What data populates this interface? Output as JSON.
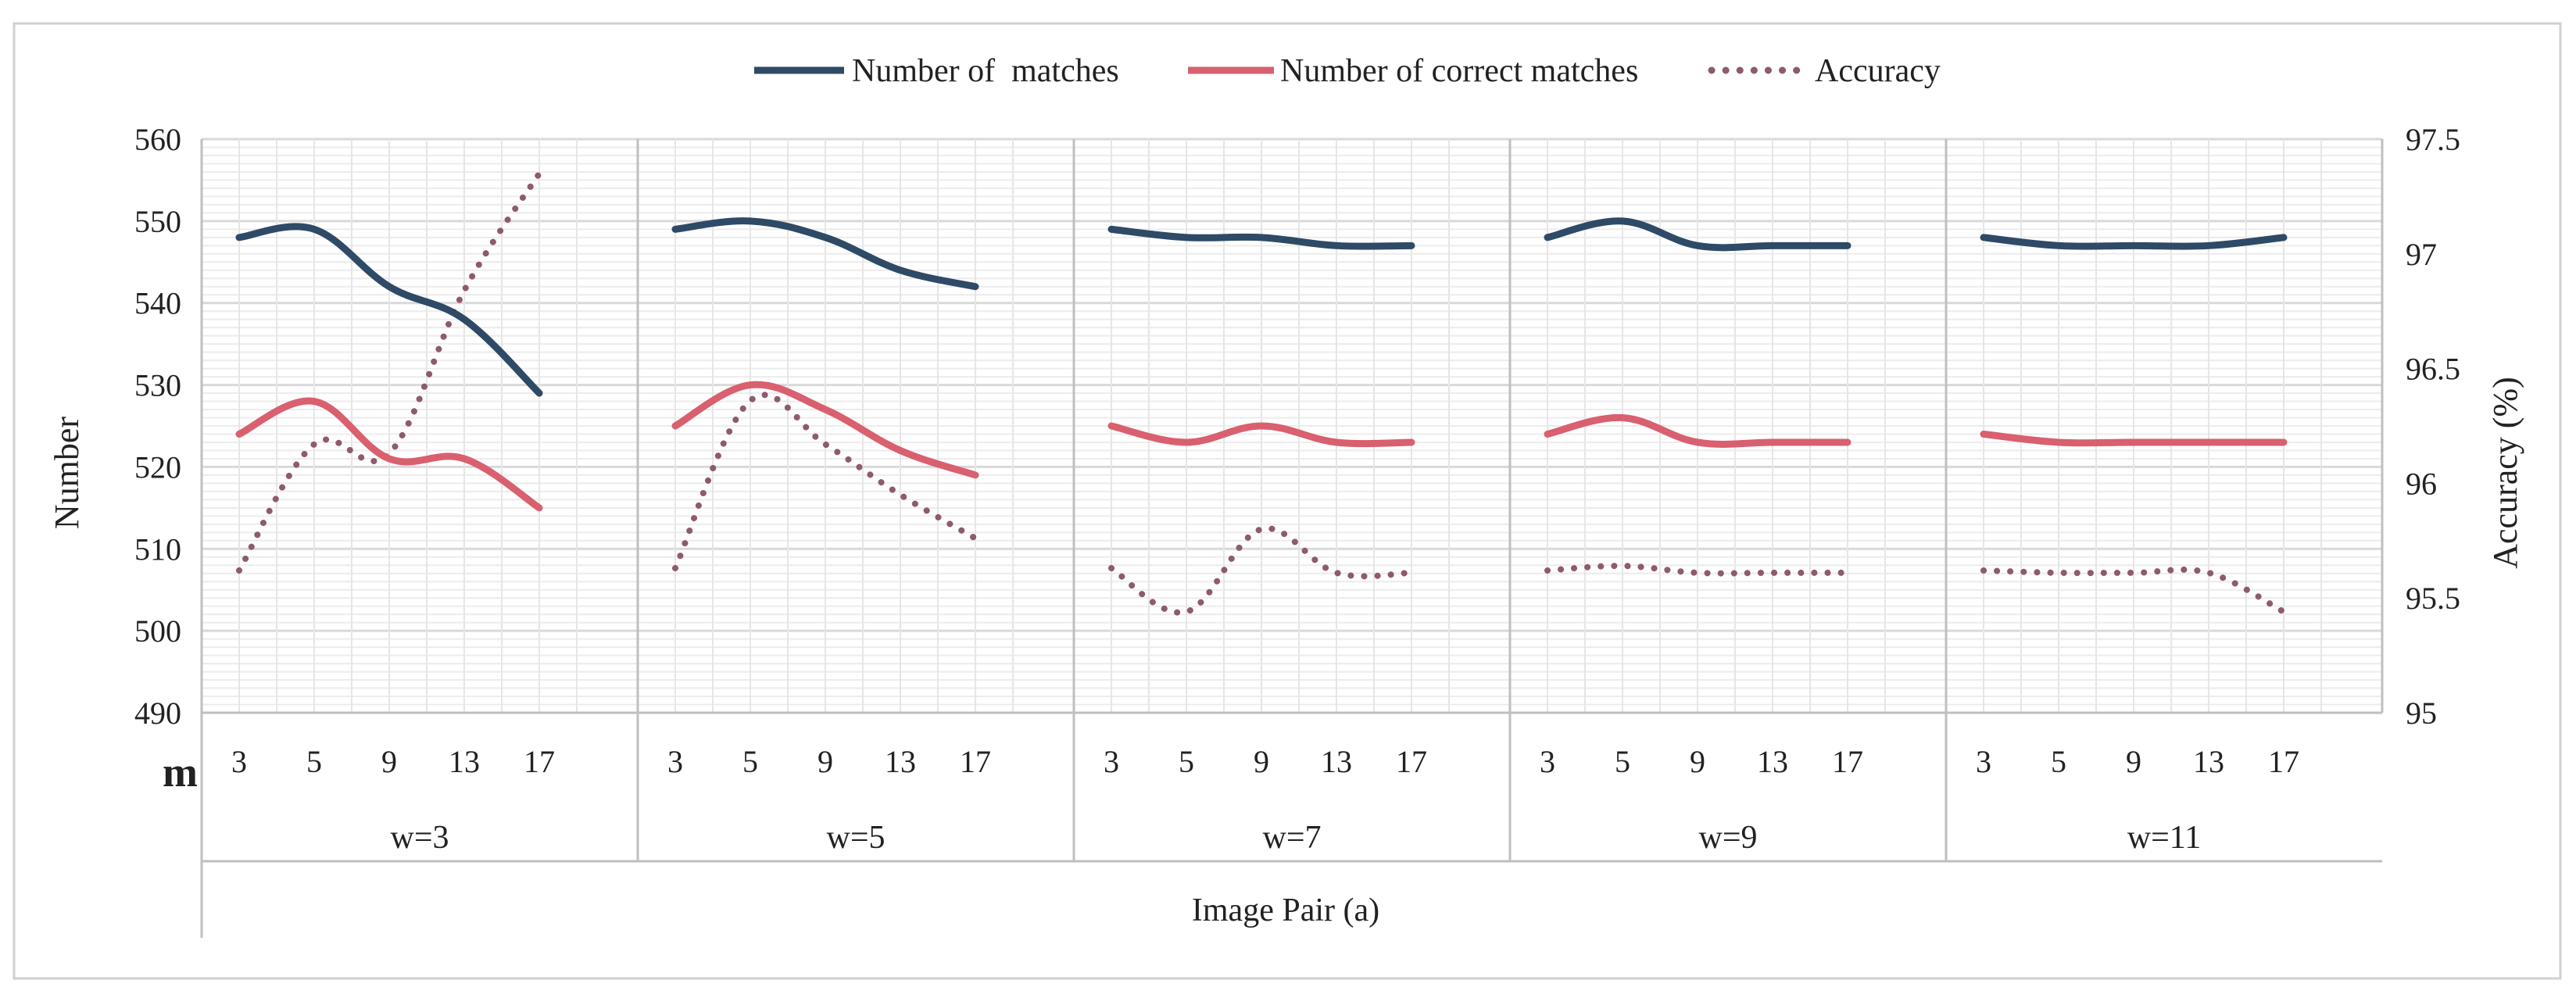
{
  "chart_data": {
    "type": "line",
    "title": "",
    "xlabel": "Image Pair (a)",
    "ylabel": "Number",
    "y2label": "Accuracy (%)",
    "m_label": "m",
    "ylim": [
      490,
      560
    ],
    "y2lim": [
      95,
      97.5
    ],
    "yticks": [
      "490",
      "500",
      "510",
      "520",
      "530",
      "540",
      "550",
      "560"
    ],
    "y2ticks": [
      "95",
      "95.5",
      "96",
      "96.5",
      "97",
      "97.5"
    ],
    "groups": [
      "w=3",
      "w=5",
      "w=7",
      "w=9",
      "w=11"
    ],
    "m_values": [
      "3",
      "5",
      "9",
      "13",
      "17"
    ],
    "legend_position": "top-center",
    "colors": {
      "matches": "#2e4a66",
      "correct": "#d9606f",
      "accuracy": "#8e5a6e",
      "grid": "#d9d9d9",
      "axis": "#bfbfbf"
    },
    "series": [
      {
        "name": "Number of  matches",
        "axis": "left",
        "style": "solid",
        "values": [
          [
            548,
            549,
            542,
            538,
            529
          ],
          [
            549,
            550,
            548,
            544,
            542
          ],
          [
            549,
            548,
            548,
            547,
            547
          ],
          [
            548,
            550,
            547,
            547,
            547
          ],
          [
            548,
            547,
            547,
            547,
            548
          ]
        ]
      },
      {
        "name": "Number of correct matches",
        "axis": "left",
        "style": "solid",
        "values": [
          [
            524,
            528,
            521,
            521,
            515
          ],
          [
            525,
            530,
            527,
            522,
            519
          ],
          [
            525,
            523,
            525,
            523,
            523
          ],
          [
            524,
            526,
            523,
            523,
            523
          ],
          [
            524,
            523,
            523,
            523,
            523
          ]
        ]
      },
      {
        "name": "Accuracy",
        "axis": "right",
        "style": "dotted",
        "values": [
          [
            95.62,
            96.17,
            96.13,
            96.84,
            97.35
          ],
          [
            95.63,
            96.36,
            96.17,
            95.95,
            95.76
          ],
          [
            95.63,
            95.44,
            95.8,
            95.61,
            95.61
          ],
          [
            95.62,
            95.64,
            95.61,
            95.61,
            95.61
          ],
          [
            95.62,
            95.61,
            95.61,
            95.61,
            95.44
          ]
        ]
      }
    ]
  }
}
